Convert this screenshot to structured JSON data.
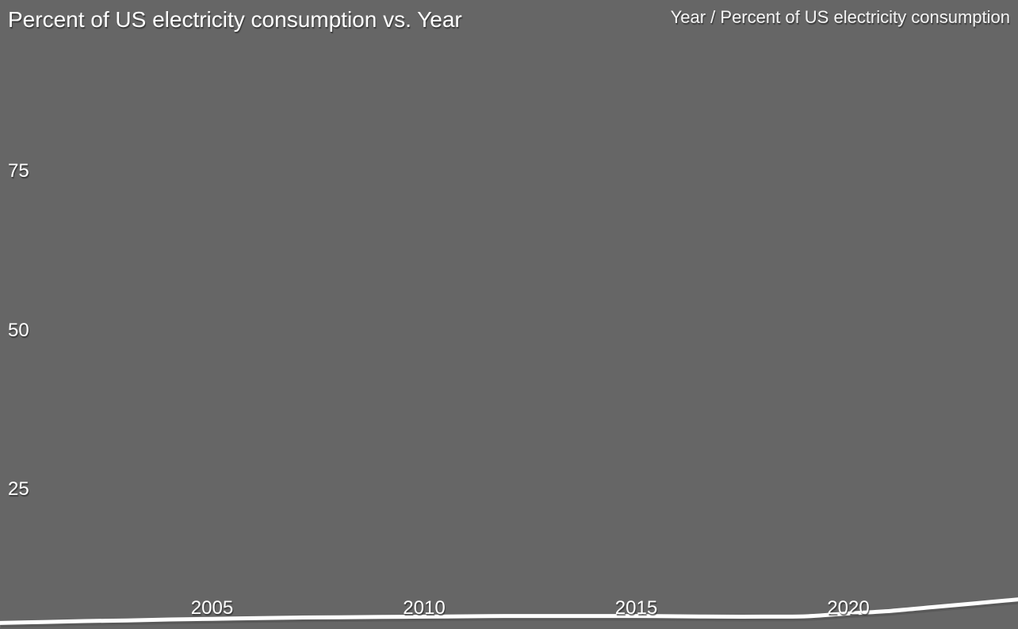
{
  "chart": {
    "title": "Percent of US electricity consumption vs. Year",
    "legend": "Year / Percent of US electricity consumption"
  },
  "chart_data": {
    "type": "line",
    "title": "Percent of US electricity consumption vs. Year",
    "xlabel": "Year",
    "ylabel": "Percent of US electricity consumption",
    "x": [
      2000,
      2001,
      2002,
      2003,
      2004,
      2005,
      2006,
      2007,
      2008,
      2009,
      2010,
      2011,
      2012,
      2013,
      2014,
      2015,
      2016,
      2017,
      2018,
      2019,
      2020,
      2021,
      2022,
      2023,
      2024
    ],
    "series": [
      {
        "name": "Percent of US electricity consumption",
        "values": [
          4.0,
          4.15,
          4.3,
          4.4,
          4.55,
          4.65,
          4.75,
          4.85,
          4.9,
          4.95,
          5.0,
          5.05,
          5.1,
          5.1,
          5.1,
          5.1,
          5.05,
          5.0,
          5.0,
          5.05,
          5.5,
          5.9,
          6.5,
          7.1,
          7.7
        ]
      }
    ],
    "xlim": [
      2000,
      2024
    ],
    "ylim": [
      0,
      100
    ],
    "xticks": [
      2005,
      2010,
      2015,
      2020
    ],
    "xtick_labels": [
      "2005",
      "2010",
      "2015",
      "2020"
    ],
    "yticks": [
      25,
      50,
      75
    ],
    "ytick_labels": [
      "25",
      "50",
      "75"
    ],
    "grid": false,
    "legend_position": "top-right",
    "line_color": "#ffffff",
    "line_shadow_color": "#4f4f4f",
    "background_color": "#666666",
    "text_color": "#ffffff"
  }
}
